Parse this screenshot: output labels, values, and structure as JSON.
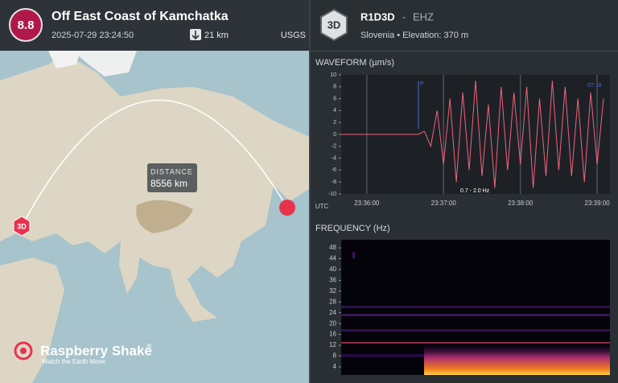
{
  "header": {
    "magnitude": "8.8",
    "title": "Off East Coast of Kamchatka",
    "time": "2025-07-29 23:24:50",
    "depth": "21 km",
    "source": "USGS"
  },
  "map": {
    "station_marker": "3D",
    "distance_label": "DISTANCE",
    "distance": "8556 km",
    "brand": "Raspberry Shake",
    "brand_mark": "®",
    "tagline": "Watch the Earth Move"
  },
  "station": {
    "badge": "3D",
    "code": "R1D3D",
    "separator": "-",
    "channel": "EHZ",
    "details": "Slovenia • Elevation: 370 m"
  },
  "chart_data": [
    {
      "type": "line",
      "title": "WAVEFORM (µm/s)",
      "color": "#f3627c",
      "x": [
        "23:35:40",
        "23:35:45",
        "23:35:50",
        "23:35:55",
        "23:36:00",
        "23:36:05",
        "23:36:10",
        "23:36:15",
        "23:36:20",
        "23:36:25",
        "23:36:30",
        "23:36:35",
        "23:36:40",
        "23:36:45",
        "23:36:50",
        "23:36:55",
        "23:37:00",
        "23:37:05",
        "23:37:10",
        "23:37:15",
        "23:37:20",
        "23:37:25",
        "23:37:30",
        "23:37:35",
        "23:37:40",
        "23:37:45",
        "23:37:50",
        "23:37:55",
        "23:38:00",
        "23:38:05",
        "23:38:10",
        "23:38:15",
        "23:38:20",
        "23:38:25",
        "23:38:30",
        "23:38:35",
        "23:38:40",
        "23:38:45",
        "23:38:50",
        "23:38:55",
        "23:39:00",
        "23:39:05"
      ],
      "values": [
        0,
        0,
        0,
        0,
        0,
        0,
        0,
        0,
        0,
        0,
        0,
        0,
        0,
        0.5,
        -2,
        4,
        -5,
        6,
        -8,
        7,
        -6,
        9,
        -7,
        5,
        -9,
        8,
        -6,
        7,
        -5,
        8,
        -9,
        6,
        -7,
        9,
        -6,
        8,
        -7,
        6,
        -8,
        7,
        -5,
        6
      ],
      "xlim": [
        "23:35:40",
        "23:39:10"
      ],
      "xticks": [
        "23:36:00",
        "23:37:00",
        "23:38:00",
        "23:39:00"
      ],
      "ylim": [
        -10,
        10
      ],
      "yticks": [
        -10,
        -8,
        -6,
        -4,
        -2,
        0,
        2,
        4,
        6,
        8,
        10
      ],
      "grid": true,
      "x_label": "UTC",
      "annotations": [
        "P",
        "07:18",
        "0.7 - 2.0 Hz"
      ]
    },
    {
      "type": "spectrogram",
      "title": "FREQUENCY (Hz)",
      "ylim": [
        1,
        51
      ],
      "yticks": [
        4,
        8,
        12,
        16,
        20,
        24,
        28,
        32,
        36,
        40,
        44,
        48
      ]
    }
  ]
}
